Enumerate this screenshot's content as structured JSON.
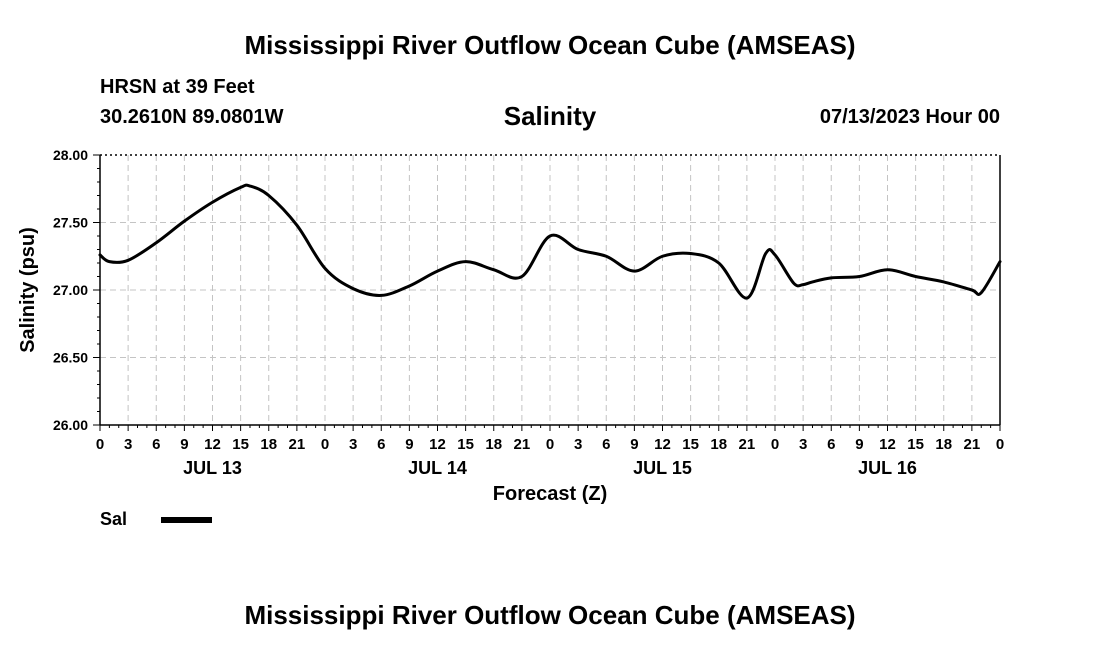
{
  "header": {
    "main_title": "Mississippi River Outflow Ocean Cube (AMSEAS)",
    "station": "HRSN at 39 Feet",
    "coords": "30.2610N  89.0801W",
    "chart_title": "Salinity",
    "datetime": "07/13/2023 Hour 00"
  },
  "legend": {
    "label": "Sal"
  },
  "footer": {
    "title": "Mississippi River Outflow Ocean Cube (AMSEAS)"
  },
  "chart_data": {
    "type": "line",
    "title": "Salinity",
    "xlabel": "Forecast (Z)",
    "ylabel": "Salinity (psu)",
    "ylim": [
      26.0,
      28.0
    ],
    "yticks": [
      "26.00",
      "26.50",
      "27.00",
      "27.50",
      "28.00"
    ],
    "xlim_hours": [
      0,
      96
    ],
    "xtick_labels": [
      "0",
      "3",
      "6",
      "9",
      "12",
      "15",
      "18",
      "21",
      "0",
      "3",
      "6",
      "9",
      "12",
      "15",
      "18",
      "21",
      "0",
      "3",
      "6",
      "9",
      "12",
      "15",
      "18",
      "21",
      "0",
      "3",
      "6",
      "9",
      "12",
      "15",
      "18",
      "21",
      "0"
    ],
    "day_labels": [
      {
        "label": "JUL 13",
        "hour": 12
      },
      {
        "label": "JUL 14",
        "hour": 36
      },
      {
        "label": "JUL 15",
        "hour": 60
      },
      {
        "label": "JUL 16",
        "hour": 84
      }
    ],
    "grid": true,
    "series": [
      {
        "name": "Sal",
        "x": [
          0,
          1,
          3,
          6,
          9,
          12,
          15,
          16,
          18,
          21,
          24,
          27,
          30,
          33,
          36,
          39,
          42,
          45,
          48,
          51,
          54,
          57,
          60,
          63,
          66,
          69,
          71,
          72,
          74,
          75,
          76,
          78,
          81,
          84,
          87,
          90,
          93,
          94,
          96
        ],
        "y": [
          27.26,
          27.21,
          27.22,
          27.35,
          27.51,
          27.65,
          27.76,
          27.77,
          27.7,
          27.48,
          27.16,
          27.01,
          26.96,
          27.03,
          27.14,
          27.21,
          27.15,
          27.1,
          27.4,
          27.3,
          27.25,
          27.14,
          27.25,
          27.27,
          27.2,
          26.94,
          27.27,
          27.26,
          27.05,
          27.04,
          27.06,
          27.09,
          27.1,
          27.15,
          27.1,
          27.06,
          27.0,
          26.98,
          27.21
        ]
      }
    ]
  }
}
